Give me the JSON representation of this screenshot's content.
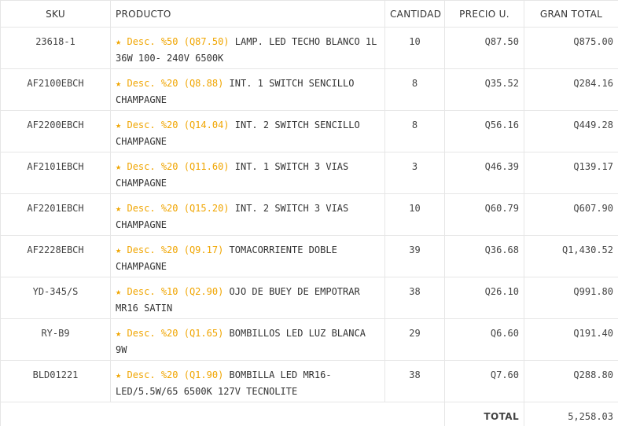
{
  "header": {
    "sku": "SKU",
    "product": "PRODUCTO",
    "quantity": "CANTIDAD",
    "unit_price": "PRECIO U.",
    "grand_total": "GRAN TOTAL"
  },
  "star_symbol": "★",
  "colors": {
    "discount": "#f0a500",
    "total": "#3aa6e0",
    "border": "#e6e6e6"
  },
  "rows": [
    {
      "sku": "23618-1",
      "discount": "Desc. %50 (Q87.50)",
      "name": "LAMP. LED TECHO BLANCO 1L 36W 100- 240V 6500K",
      "qty": "10",
      "price": "Q87.50",
      "total": "Q875.00"
    },
    {
      "sku": "AF2100EBCH",
      "discount": "Desc. %20 (Q8.88)",
      "name": "INT. 1 SWITCH SENCILLO CHAMPAGNE",
      "qty": "8",
      "price": "Q35.52",
      "total": "Q284.16"
    },
    {
      "sku": "AF2200EBCH",
      "discount": "Desc. %20 (Q14.04)",
      "name": "INT. 2 SWITCH SENCILLO CHAMPAGNE",
      "qty": "8",
      "price": "Q56.16",
      "total": "Q449.28"
    },
    {
      "sku": "AF2101EBCH",
      "discount": "Desc. %20 (Q11.60)",
      "name": "INT. 1 SWITCH 3 VIAS CHAMPAGNE",
      "qty": "3",
      "price": "Q46.39",
      "total": "Q139.17"
    },
    {
      "sku": "AF2201EBCH",
      "discount": "Desc. %20 (Q15.20)",
      "name": "INT. 2 SWITCH 3 VIAS CHAMPAGNE",
      "qty": "10",
      "price": "Q60.79",
      "total": "Q607.90"
    },
    {
      "sku": "AF2228EBCH",
      "discount": "Desc. %20 (Q9.17)",
      "name": "TOMACORRIENTE DOBLE CHAMPAGNE",
      "qty": "39",
      "price": "Q36.68",
      "total": "Q1,430.52"
    },
    {
      "sku": "YD-345/S",
      "discount": "Desc. %10 (Q2.90)",
      "name": "OJO DE BUEY DE EMPOTRAR MR16 SATIN",
      "qty": "38",
      "price": "Q26.10",
      "total": "Q991.80"
    },
    {
      "sku": "RY-B9",
      "discount": "Desc. %20 (Q1.65)",
      "name": "BOMBILLOS LED LUZ BLANCA 9W",
      "qty": "29",
      "price": "Q6.60",
      "total": "Q191.40"
    },
    {
      "sku": "BLD01221",
      "discount": "Desc. %20 (Q1.90)",
      "name": "BOMBILLA LED MR16-LED/5.5W/65 6500K 127V TECNOLITE",
      "qty": "38",
      "price": "Q7.60",
      "total": "Q288.80"
    }
  ],
  "total": {
    "label": "TOTAL",
    "value": "5,258.03"
  }
}
